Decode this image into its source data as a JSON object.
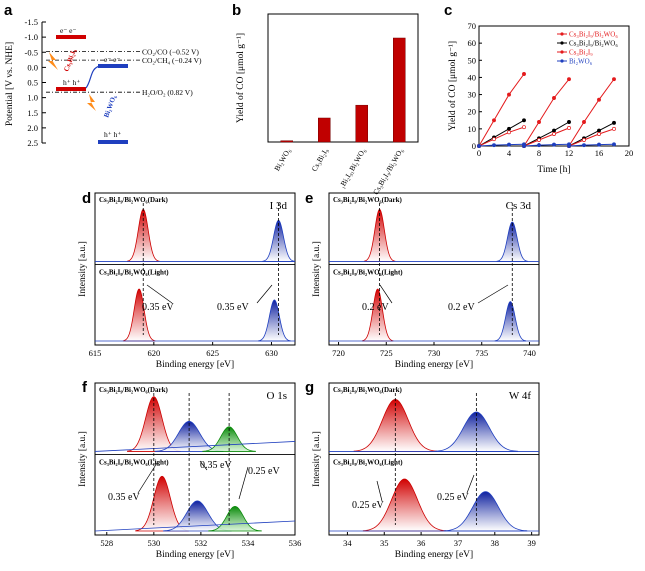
{
  "panel_labels": [
    "a",
    "b",
    "c",
    "d",
    "e",
    "f",
    "g"
  ],
  "colors": {
    "red": "#e41a1c",
    "darkred": "#c00000",
    "blue": "#1f3fbf",
    "green": "#18a018",
    "black": "#000000",
    "orange": "#ff8c1a"
  },
  "chart_data": [
    {
      "id": "a",
      "type": "diagram",
      "ylabel": "Potential [V vs. NHE]",
      "yticks": [
        "-1.5",
        "-1.0",
        "-0.5",
        "0.0",
        "0.5",
        "1.0",
        "1.5",
        "2.0",
        "2.5"
      ],
      "ylim": [
        -1.5,
        2.5
      ],
      "levels": [
        {
          "label": "CO₂/CO (−0.52 V)",
          "value": -0.52
        },
        {
          "label": "CO₂/CH₄ (−0.24 V)",
          "value": -0.24
        },
        {
          "label": "H₂O/O₂ (0.82 V)",
          "value": 0.82
        }
      ],
      "materials": [
        {
          "name": "Cs₃Bi₂I₉",
          "cb": -1.0,
          "vb": 0.78
        },
        {
          "name": "Bi₂WO₆",
          "cb": 0.1,
          "vb": 2.5
        }
      ],
      "carrier_labels": {
        "electrons": "e⁻ e⁻",
        "holes": "h⁺ h⁺",
        "holes_gap": "h⁺ h⁺"
      }
    },
    {
      "id": "b",
      "type": "bar",
      "ylabel": "Yield of CO [μmol g⁻¹]",
      "categories": [
        "Bi₂WO₆",
        "Cs₃Bi₂I₉",
        "₁Bi₂I₉₁Bi₂WO₆",
        "Cs₃Bi₂I₉/Bi₂WO₆"
      ],
      "values": [
        0.8,
        15,
        23,
        65
      ],
      "ylim": [
        0,
        80
      ]
    },
    {
      "id": "c",
      "type": "line",
      "xlabel": "Time [h]",
      "ylabel": "Yield of CO [μmol g⁻¹]",
      "xlim": [
        0,
        20
      ],
      "ylim": [
        0,
        70
      ],
      "xticks": [
        "0",
        "4",
        "8",
        "12",
        "16",
        "20"
      ],
      "yticks": [
        "0",
        "10",
        "20",
        "30",
        "40",
        "50",
        "60",
        "70"
      ],
      "series": [
        {
          "name": "Cs₃Bi₂I₉/Bi₂WO₆",
          "color": "#e41a1c",
          "x": [
            0,
            2,
            4,
            6,
            6,
            8,
            10,
            12,
            12,
            14,
            16,
            18
          ],
          "y": [
            0,
            15,
            30,
            42,
            0,
            14,
            28,
            39,
            0,
            14,
            27,
            39
          ]
        },
        {
          "name": "Cs₃Bi₂I₉/Bi₂WO₆",
          "color": "#000000",
          "x": [
            0,
            2,
            4,
            6,
            6,
            8,
            10,
            12,
            12,
            14,
            16,
            18
          ],
          "y": [
            0,
            5,
            10,
            15,
            0,
            4.5,
            9,
            14,
            0,
            4.5,
            9,
            13.5
          ]
        },
        {
          "name": "Cs₃Bi₂I₉",
          "color": "#e41a1c",
          "x": [
            0,
            2,
            4,
            6,
            6,
            8,
            10,
            12,
            12,
            14,
            16,
            18
          ],
          "y": [
            0,
            4,
            8,
            11,
            0,
            3.5,
            7,
            10.5,
            0,
            3.5,
            7,
            10
          ]
        },
        {
          "name": "Bi₂WO₆",
          "color": "#1f3fbf",
          "x": [
            0,
            2,
            4,
            6,
            6,
            8,
            10,
            12,
            12,
            14,
            16,
            18
          ],
          "y": [
            0,
            0.5,
            0.8,
            1,
            0,
            0.5,
            0.8,
            1,
            0,
            0.5,
            0.8,
            1
          ]
        }
      ]
    },
    {
      "id": "d",
      "type": "xps",
      "xlabel": "Binding energy [eV]",
      "ylabel": "Intensity [a.u.]",
      "xlim": [
        615,
        632
      ],
      "xticks": [
        "615",
        "620",
        "625",
        "630"
      ],
      "core": "I 3d",
      "dark_label": "Cs₃Bi₂I₉/Bi₂WO₆(Dark)",
      "light_label": "Cs₃Bi₂I₉/Bi₂WO₆(Light)",
      "dark_peaks": [
        619.1,
        630.6
      ],
      "light_peaks": [
        618.75,
        630.25
      ],
      "shift_labels": [
        "0.35 eV",
        "0.35 eV"
      ]
    },
    {
      "id": "e",
      "type": "xps",
      "xlabel": "Binding energy [eV]",
      "ylabel": "Intensity [a.u.]",
      "xlim": [
        719,
        741
      ],
      "xticks": [
        "720",
        "725",
        "730",
        "735",
        "740"
      ],
      "core": "Cs 3d",
      "dark_label": "Cs₃Bi₂I₉/Bi₂WO₆(Dark)",
      "light_label": "Cs₃Bi₂I₉/Bi₂WO₆(Light)",
      "dark_peaks": [
        724.3,
        738.2
      ],
      "light_peaks": [
        724.1,
        738.0
      ],
      "shift_labels": [
        "0.2 eV",
        "0.2 eV"
      ]
    },
    {
      "id": "f",
      "type": "xps",
      "xlabel": "Binding energy [eV]",
      "ylabel": "Intensity [a.u.]",
      "xlim": [
        527.5,
        536
      ],
      "xticks": [
        "528",
        "530",
        "532",
        "534",
        "536"
      ],
      "core": "O 1s",
      "dark_label": "Cs₃Bi₂I₉/Bi₂WO₆(Dark)",
      "light_label": "Cs₃Bi₂I₉/Bi₂WO₆(Light)",
      "dark_peaks": [
        530.0,
        531.5,
        533.2
      ],
      "light_peaks": [
        530.35,
        531.85,
        533.45
      ],
      "shift_labels": [
        "0.35 eV",
        "0.35 eV",
        "0.25 eV"
      ]
    },
    {
      "id": "g",
      "type": "xps",
      "xlabel": "Binding energy [eV]",
      "ylabel": "Intensity [a.u.]",
      "xlim": [
        33.5,
        39.2
      ],
      "xticks": [
        "34",
        "35",
        "36",
        "37",
        "38",
        "39"
      ],
      "core": "W 4f",
      "dark_label": "Cs₃Bi₂I₉/Bi₂WO₆(Dark)",
      "light_label": "Cs₃Bi₂I₉/Bi₂WO₆(Light)",
      "dark_peaks": [
        35.3,
        37.5
      ],
      "light_peaks": [
        35.55,
        37.75
      ],
      "shift_labels": [
        "0.25 eV",
        "0.25 eV"
      ]
    }
  ]
}
